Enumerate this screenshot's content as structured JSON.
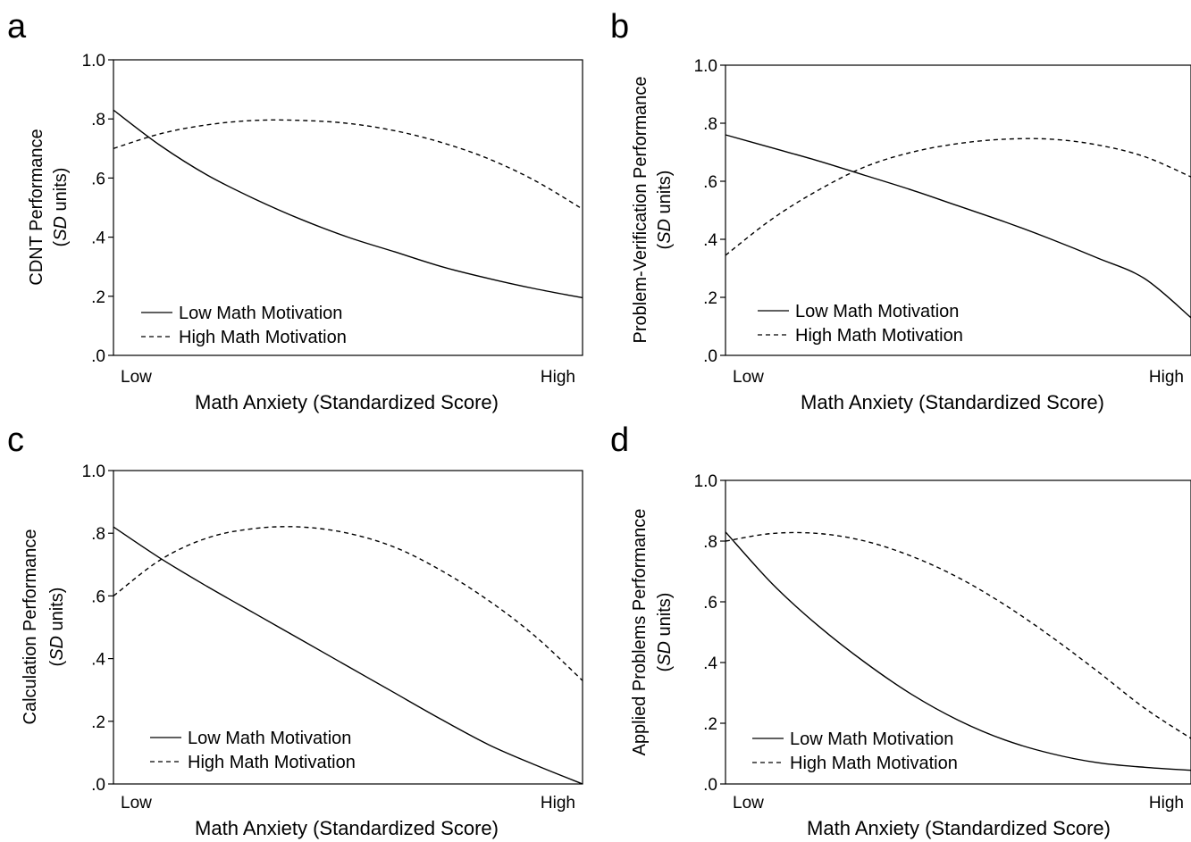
{
  "chart_data": [
    {
      "panel_letter": "a",
      "type": "line",
      "ylabel_line1": "CDNT Performance",
      "ylabel_line2_italic": "SD",
      "ylabel_line2_rest": " units)",
      "ylabel_line2_open": "(",
      "xlabel": "Math Anxiety (Standardized Score)",
      "x_tick_labels": [
        "Low",
        "High"
      ],
      "y_tick_labels": [
        ".0",
        ".2",
        ".4",
        ".6",
        ".8",
        "1.0"
      ],
      "yticks": [
        0,
        0.2,
        0.4,
        0.6,
        0.8,
        1.0
      ],
      "ylim": [
        0,
        1.0
      ],
      "xlim": [
        0,
        1
      ],
      "legend_position": "bottom-left",
      "series": [
        {
          "name": "Low Math Motivation",
          "style": "solid",
          "x": [
            0,
            0.1,
            0.2,
            0.3,
            0.4,
            0.5,
            0.6,
            0.7,
            0.8,
            0.9,
            1.0
          ],
          "y": [
            0.83,
            0.71,
            0.61,
            0.53,
            0.46,
            0.4,
            0.35,
            0.3,
            0.26,
            0.225,
            0.195
          ]
        },
        {
          "name": "High Math Motivation",
          "style": "dashed",
          "x": [
            0,
            0.1,
            0.2,
            0.3,
            0.4,
            0.5,
            0.6,
            0.7,
            0.8,
            0.9,
            1.0
          ],
          "y": [
            0.7,
            0.75,
            0.78,
            0.795,
            0.795,
            0.785,
            0.76,
            0.72,
            0.665,
            0.59,
            0.495
          ]
        }
      ]
    },
    {
      "panel_letter": "b",
      "type": "line",
      "ylabel_line1": "Problem-Verification Performance",
      "ylabel_line2_italic": "SD",
      "ylabel_line2_rest": " units)",
      "ylabel_line2_open": "(",
      "xlabel": "Math Anxiety (Standardized Score)",
      "x_tick_labels": [
        "Low",
        "High"
      ],
      "y_tick_labels": [
        ".0",
        ".2",
        ".4",
        ".6",
        ".8",
        "1.0"
      ],
      "yticks": [
        0,
        0.2,
        0.4,
        0.6,
        0.8,
        1.0
      ],
      "ylim": [
        0,
        1.0
      ],
      "xlim": [
        0,
        1
      ],
      "legend_position": "bottom-left",
      "series": [
        {
          "name": "Low Math Motivation",
          "style": "solid",
          "x": [
            0,
            0.1,
            0.2,
            0.3,
            0.4,
            0.5,
            0.6,
            0.7,
            0.8,
            0.9,
            1.0
          ],
          "y": [
            0.76,
            0.715,
            0.67,
            0.62,
            0.57,
            0.515,
            0.46,
            0.4,
            0.335,
            0.265,
            0.13
          ]
        },
        {
          "name": "High Math Motivation",
          "style": "dashed",
          "x": [
            0,
            0.1,
            0.2,
            0.3,
            0.4,
            0.5,
            0.6,
            0.7,
            0.8,
            0.9,
            1.0
          ],
          "y": [
            0.345,
            0.47,
            0.57,
            0.65,
            0.7,
            0.73,
            0.745,
            0.745,
            0.725,
            0.685,
            0.615
          ]
        }
      ]
    },
    {
      "panel_letter": "c",
      "type": "line",
      "ylabel_line1": "Calculation Performance",
      "ylabel_line2_italic": "SD",
      "ylabel_line2_rest": " units)",
      "ylabel_line2_open": "(",
      "xlabel": "Math Anxiety (Standardized Score)",
      "x_tick_labels": [
        "Low",
        "High"
      ],
      "y_tick_labels": [
        ".0",
        ".2",
        ".4",
        ".6",
        ".8",
        "1.0"
      ],
      "yticks": [
        0,
        0.2,
        0.4,
        0.6,
        0.8,
        1.0
      ],
      "ylim": [
        0,
        1.0
      ],
      "xlim": [
        0,
        1
      ],
      "legend_position": "bottom-left",
      "series": [
        {
          "name": "Low Math Motivation",
          "style": "solid",
          "x": [
            0,
            0.1,
            0.2,
            0.3,
            0.4,
            0.5,
            0.6,
            0.7,
            0.8,
            0.9,
            1.0
          ],
          "y": [
            0.82,
            0.72,
            0.63,
            0.545,
            0.46,
            0.375,
            0.29,
            0.205,
            0.125,
            0.06,
            0.0
          ]
        },
        {
          "name": "High Math Motivation",
          "style": "dashed",
          "x": [
            0,
            0.1,
            0.2,
            0.3,
            0.4,
            0.5,
            0.6,
            0.7,
            0.8,
            0.9,
            1.0
          ],
          "y": [
            0.6,
            0.715,
            0.785,
            0.815,
            0.82,
            0.8,
            0.755,
            0.68,
            0.585,
            0.47,
            0.33
          ]
        }
      ]
    },
    {
      "panel_letter": "d",
      "type": "line",
      "ylabel_line1": "Applied Problems Performance",
      "ylabel_line2_italic": "SD",
      "ylabel_line2_rest": " units)",
      "ylabel_line2_open": "(",
      "xlabel": "Math Anxiety (Standardized Score)",
      "x_tick_labels": [
        "Low",
        "High"
      ],
      "y_tick_labels": [
        ".0",
        ".2",
        ".4",
        ".6",
        ".8",
        "1.0"
      ],
      "yticks": [
        0,
        0.2,
        0.4,
        0.6,
        0.8,
        1.0
      ],
      "ylim": [
        0,
        1.0
      ],
      "xlim": [
        0,
        1
      ],
      "legend_position": "bottom-left",
      "series": [
        {
          "name": "Low Math Motivation",
          "style": "solid",
          "x": [
            0,
            0.1,
            0.2,
            0.3,
            0.4,
            0.5,
            0.6,
            0.7,
            0.8,
            0.9,
            1.0
          ],
          "y": [
            0.83,
            0.66,
            0.52,
            0.4,
            0.295,
            0.21,
            0.145,
            0.1,
            0.07,
            0.055,
            0.045
          ]
        },
        {
          "name": "High Math Motivation",
          "style": "dashed",
          "x": [
            0,
            0.1,
            0.2,
            0.3,
            0.4,
            0.5,
            0.6,
            0.7,
            0.8,
            0.9,
            1.0
          ],
          "y": [
            0.8,
            0.825,
            0.825,
            0.8,
            0.75,
            0.68,
            0.59,
            0.485,
            0.37,
            0.25,
            0.15
          ]
        }
      ]
    }
  ]
}
